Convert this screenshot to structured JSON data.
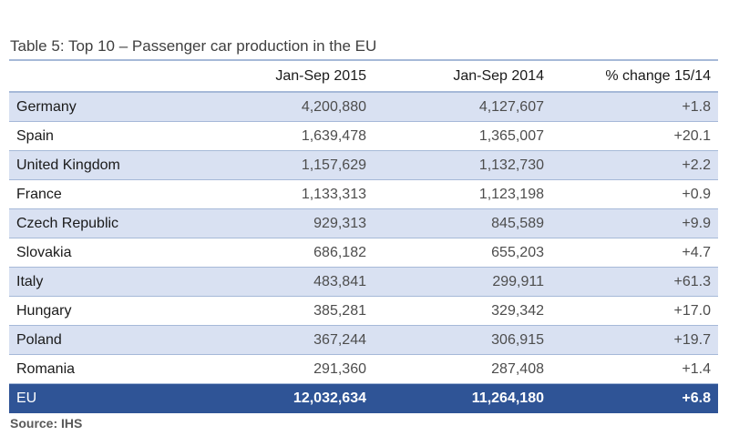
{
  "chart_data": {
    "type": "table",
    "title": "Table 5: Top 10 – Passenger car production in the EU",
    "columns": [
      "",
      "Jan-Sep 2015",
      "Jan-Sep 2014",
      "% change 15/14"
    ],
    "rows": [
      [
        "Germany",
        "4,200,880",
        "4,127,607",
        "+1.8"
      ],
      [
        "Spain",
        "1,639,478",
        "1,365,007",
        "+20.1"
      ],
      [
        "United Kingdom",
        "1,157,629",
        "1,132,730",
        "+2.2"
      ],
      [
        "France",
        "1,133,313",
        "1,123,198",
        "+0.9"
      ],
      [
        "Czech Republic",
        "929,313",
        "845,589",
        "+9.9"
      ],
      [
        "Slovakia",
        "686,182",
        "655,203",
        "+4.7"
      ],
      [
        "Italy",
        "483,841",
        "299,911",
        "+61.3"
      ],
      [
        "Hungary",
        "385,281",
        "329,342",
        "+17.0"
      ],
      [
        "Poland",
        "367,244",
        "306,915",
        "+19.7"
      ],
      [
        "Romania",
        "291,360",
        "287,408",
        "+1.4"
      ]
    ],
    "total": [
      "EU",
      "12,032,634",
      "11,264,180",
      "+6.8"
    ],
    "source": "Source: IHS",
    "colors": {
      "row_shade": "#d9e1f2",
      "total_bg": "#2f5496",
      "rule": "#a6b9d8"
    }
  }
}
